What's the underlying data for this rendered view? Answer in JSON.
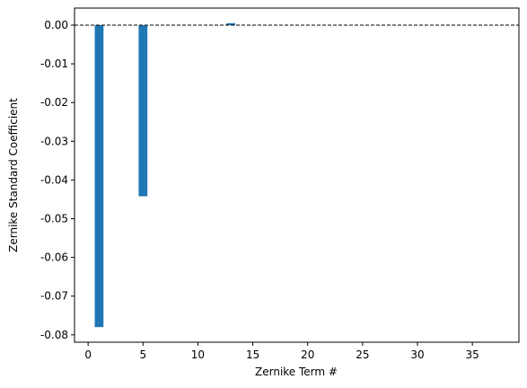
{
  "chart_data": {
    "type": "bar",
    "xlabel": "Zernike Term #",
    "ylabel": "Zernike Standard Coefficient",
    "x": [
      1,
      2,
      3,
      4,
      5,
      6,
      7,
      8,
      9,
      10,
      11,
      12,
      13,
      14,
      15,
      16,
      17,
      18,
      19,
      20,
      21,
      22,
      23,
      24,
      25,
      26,
      27,
      28,
      29,
      30,
      31,
      32,
      33,
      34,
      35,
      36,
      37
    ],
    "values": [
      -0.078,
      0,
      0,
      0,
      -0.0442,
      0,
      0,
      0,
      0,
      0,
      0,
      0,
      0.0005,
      0,
      0,
      0,
      0,
      0,
      0,
      0,
      0,
      0,
      0,
      0,
      0,
      0,
      0,
      0,
      0,
      0,
      0,
      0,
      0,
      0,
      0,
      0,
      0
    ],
    "color": "#1f77b4",
    "bar_width": 0.8,
    "reference_line": 0,
    "xlim": [
      -1.24,
      39.24
    ],
    "ylim": [
      -0.0819,
      0.0044
    ],
    "xticks": [
      0,
      5,
      10,
      15,
      20,
      25,
      30,
      35
    ],
    "yticks": [
      {
        "value": -0.08,
        "label": "-0.08"
      },
      {
        "value": -0.07,
        "label": "-0.07"
      },
      {
        "value": -0.06,
        "label": "-0.06"
      },
      {
        "value": -0.05,
        "label": "-0.05"
      },
      {
        "value": -0.04,
        "label": "-0.04"
      },
      {
        "value": -0.03,
        "label": "-0.03"
      },
      {
        "value": -0.02,
        "label": "-0.02"
      },
      {
        "value": -0.01,
        "label": "-0.01"
      },
      {
        "value": 0,
        "label": "0.00"
      }
    ]
  }
}
